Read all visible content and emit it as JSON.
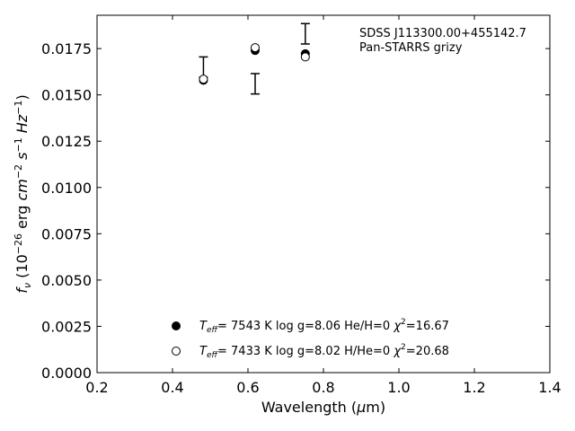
{
  "chart_data": {
    "type": "scatter",
    "title": "",
    "xlabel": "Wavelength (μm)",
    "ylabel": "f_ν (10^-26 erg cm^-2 s^-1 Hz^-1)",
    "xlim": [
      0.2,
      1.4
    ],
    "ylim": [
      0.0,
      0.0193
    ],
    "xticks": [
      "0.2",
      "0.4",
      "0.6",
      "0.8",
      "1.0",
      "1.2",
      "1.4"
    ],
    "yticks": [
      "0.0000",
      "0.0025",
      "0.0050",
      "0.0075",
      "0.0100",
      "0.0125",
      "0.0150",
      "0.0175"
    ],
    "grid": false,
    "legend_position": "lower-center",
    "annotation": [
      "SDSS J113300.00+455142.7",
      "Pan-STARRS grizy"
    ],
    "observed": {
      "x": [
        0.482,
        0.619,
        0.752
      ],
      "y": [
        0.0165,
        0.0156,
        0.0183
      ],
      "yerr": [
        0.00055,
        0.00055,
        0.00055
      ]
    },
    "series": [
      {
        "name": "Teff= 7543 K log g=8.06 He/H=0 χ²=16.67",
        "marker": "filled-circle",
        "x": [
          0.482,
          0.619,
          0.752
        ],
        "y": [
          0.01579,
          0.0174,
          0.01722
        ]
      },
      {
        "name": "Teff= 7433 K log g=8.02 H/He=0 χ²=20.68",
        "marker": "open-circle",
        "x": [
          0.482,
          0.619,
          0.752
        ],
        "y": [
          0.01585,
          0.01755,
          0.01705
        ]
      }
    ],
    "legend": [
      {
        "teff": "7543 K",
        "logg": "log g=8.06",
        "comp": "He/H=0",
        "chi": "=16.67"
      },
      {
        "teff": "7433 K",
        "logg": "log g=8.02",
        "comp": "H/He=0",
        "chi": "=20.68"
      }
    ]
  }
}
